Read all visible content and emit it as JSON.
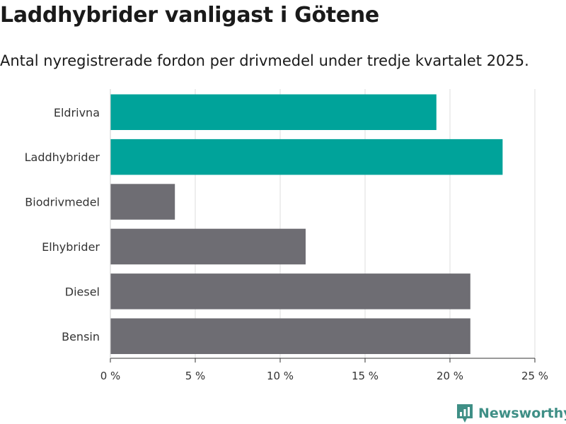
{
  "title": "Laddhybrider vanligast i Götene",
  "subtitle": "Antal nyregistrerade fordon per drivmedel under tredje kvartalet 2025.",
  "brand": {
    "name": "Newsworthy",
    "icon": "newsworthy-logo-icon",
    "color": "#3f8f86"
  },
  "colors": {
    "highlight": "#00a39a",
    "default": "#6e6d73",
    "grid": "#dcdcdc"
  },
  "chart_data": {
    "type": "bar",
    "orientation": "horizontal",
    "categories": [
      "Eldrivna",
      "Laddhybrider",
      "Biodrivmedel",
      "Elhybrider",
      "Diesel",
      "Bensin"
    ],
    "values": [
      19.2,
      23.1,
      3.8,
      11.5,
      21.2,
      21.2
    ],
    "highlighted": [
      true,
      true,
      false,
      false,
      false,
      false
    ],
    "xlim": [
      0,
      25
    ],
    "xticks": [
      0,
      5,
      10,
      15,
      20,
      25
    ],
    "xtick_labels": [
      "0 %",
      "5 %",
      "10 %",
      "15 %",
      "20 %",
      "25 %"
    ],
    "xlabel": "",
    "ylabel": "",
    "grid": "vertical"
  }
}
